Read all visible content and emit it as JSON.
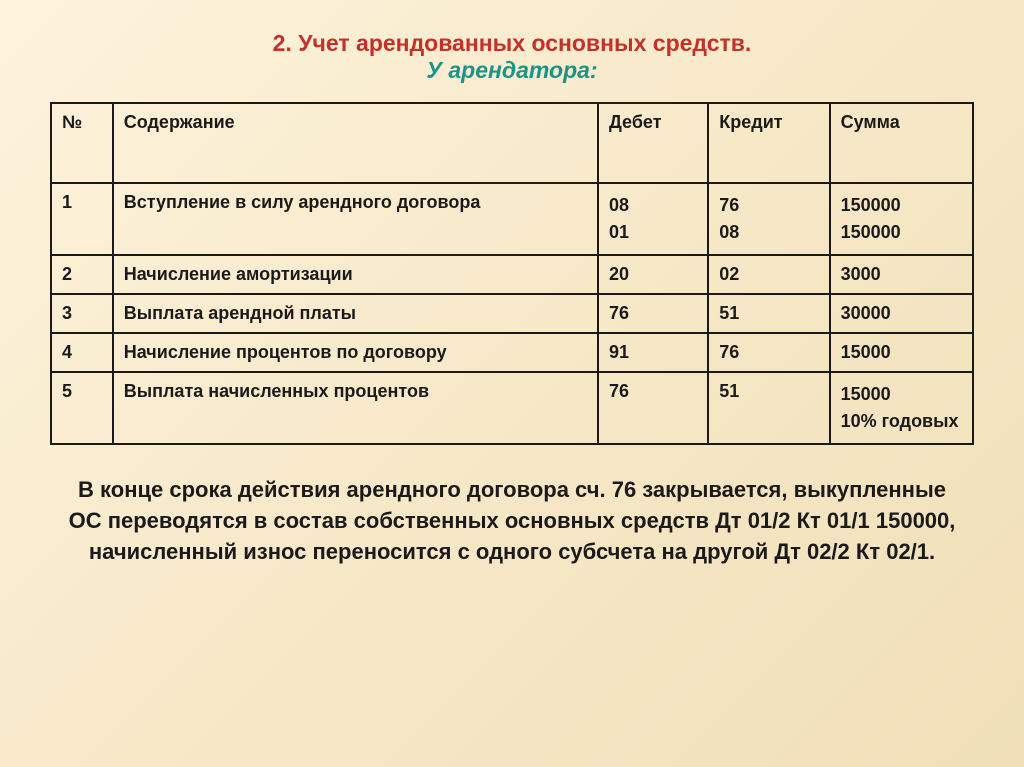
{
  "title": {
    "main": "2. Учет арендованных основных средств.",
    "sub": "У арендатора:"
  },
  "table": {
    "headers": {
      "num": "№",
      "desc": "Содержание",
      "debit": "Дебет",
      "credit": "Кредит",
      "sum": "Сумма"
    },
    "rows": [
      {
        "num": "1",
        "desc": "Вступление в силу арендного договора",
        "debit": "08\n01",
        "credit": "76\n08",
        "sum": "150000\n150000"
      },
      {
        "num": "2",
        "desc": "Начисление амортизации",
        "debit": "20",
        "credit": "02",
        "sum": "3000"
      },
      {
        "num": "3",
        "desc": "Выплата арендной платы",
        "debit": "76",
        "credit": "51",
        "sum": "30000"
      },
      {
        "num": "4",
        "desc": "Начисление процентов по договору",
        "debit": "91",
        "credit": "76",
        "sum": "15000"
      },
      {
        "num": "5",
        "desc": "Выплата начисленных процентов",
        "debit": "76",
        "credit": "51",
        "sum": "15000\n10% годовых"
      }
    ]
  },
  "footer": "В конце срока действия арендного договора сч. 76 закрывается, выкупленные ОС переводятся в состав собственных основных средств  Дт 01/2   Кт 01/1  150000, начисленный износ переносится с одного субсчета на другой Дт 02/2  Кт 02/1."
}
